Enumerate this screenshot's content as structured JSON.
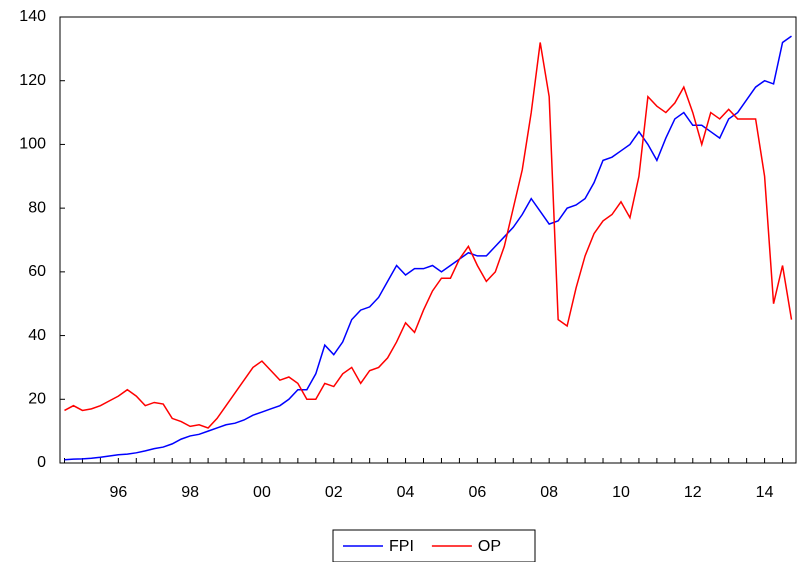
{
  "chart_data": {
    "type": "line",
    "categories": [
      null,
      null,
      null,
      null,
      null,
      null,
      "96",
      null,
      null,
      null,
      null,
      null,
      null,
      null,
      "98",
      null,
      null,
      null,
      null,
      null,
      null,
      null,
      "00",
      null,
      null,
      null,
      null,
      null,
      null,
      null,
      "02",
      null,
      null,
      null,
      null,
      null,
      null,
      null,
      "04",
      null,
      null,
      null,
      null,
      null,
      null,
      null,
      "06",
      null,
      null,
      null,
      null,
      null,
      null,
      null,
      "08",
      null,
      null,
      null,
      null,
      null,
      null,
      null,
      "10",
      null,
      null,
      null,
      null,
      null,
      null,
      null,
      "12",
      null,
      null,
      null,
      null,
      null,
      null,
      null,
      "14",
      null,
      null,
      null
    ],
    "series": [
      {
        "name": "FPI",
        "color": "#0000ff",
        "values": [
          1,
          1.2,
          1.3,
          1.5,
          1.8,
          2.2,
          2.6,
          2.8,
          3.2,
          3.8,
          4.5,
          5,
          6,
          7.5,
          8.5,
          9,
          10,
          11,
          12,
          12.5,
          13.5,
          15,
          16,
          17,
          18,
          20,
          23,
          23,
          28,
          37,
          34,
          38,
          45,
          48,
          49,
          52,
          57,
          62,
          59,
          61,
          61,
          62,
          60,
          62,
          64,
          66,
          65,
          65,
          68,
          71,
          74,
          78,
          83,
          79,
          75,
          76,
          80,
          81,
          83,
          88,
          95,
          96,
          98,
          100,
          104,
          100,
          95,
          102,
          108,
          110,
          106,
          106,
          104,
          102,
          108,
          110,
          114,
          118,
          120,
          119,
          132,
          134
        ]
      },
      {
        "name": "OP",
        "color": "#ff0000",
        "values": [
          16.5,
          18,
          16.5,
          17,
          18,
          19.5,
          21,
          23,
          21,
          18,
          19,
          18.5,
          14,
          13,
          11.5,
          12,
          11,
          14,
          18,
          22,
          26,
          30,
          32,
          29,
          26,
          27,
          25,
          20,
          20,
          25,
          24,
          28,
          30,
          25,
          29,
          30,
          33,
          38,
          44,
          41,
          48,
          54,
          58,
          58,
          64,
          68,
          62,
          57,
          60,
          68,
          80,
          92,
          110,
          132,
          115,
          45,
          43,
          55,
          65,
          72,
          76,
          78,
          82,
          77,
          90,
          115,
          112,
          110,
          113,
          118,
          110,
          100,
          110,
          108,
          111,
          108,
          108,
          108,
          90,
          50,
          62,
          45
        ]
      }
    ],
    "ylim": [
      0,
      140
    ],
    "yticks": [
      0,
      20,
      40,
      60,
      80,
      100,
      120,
      140
    ],
    "legend": "bottom"
  }
}
